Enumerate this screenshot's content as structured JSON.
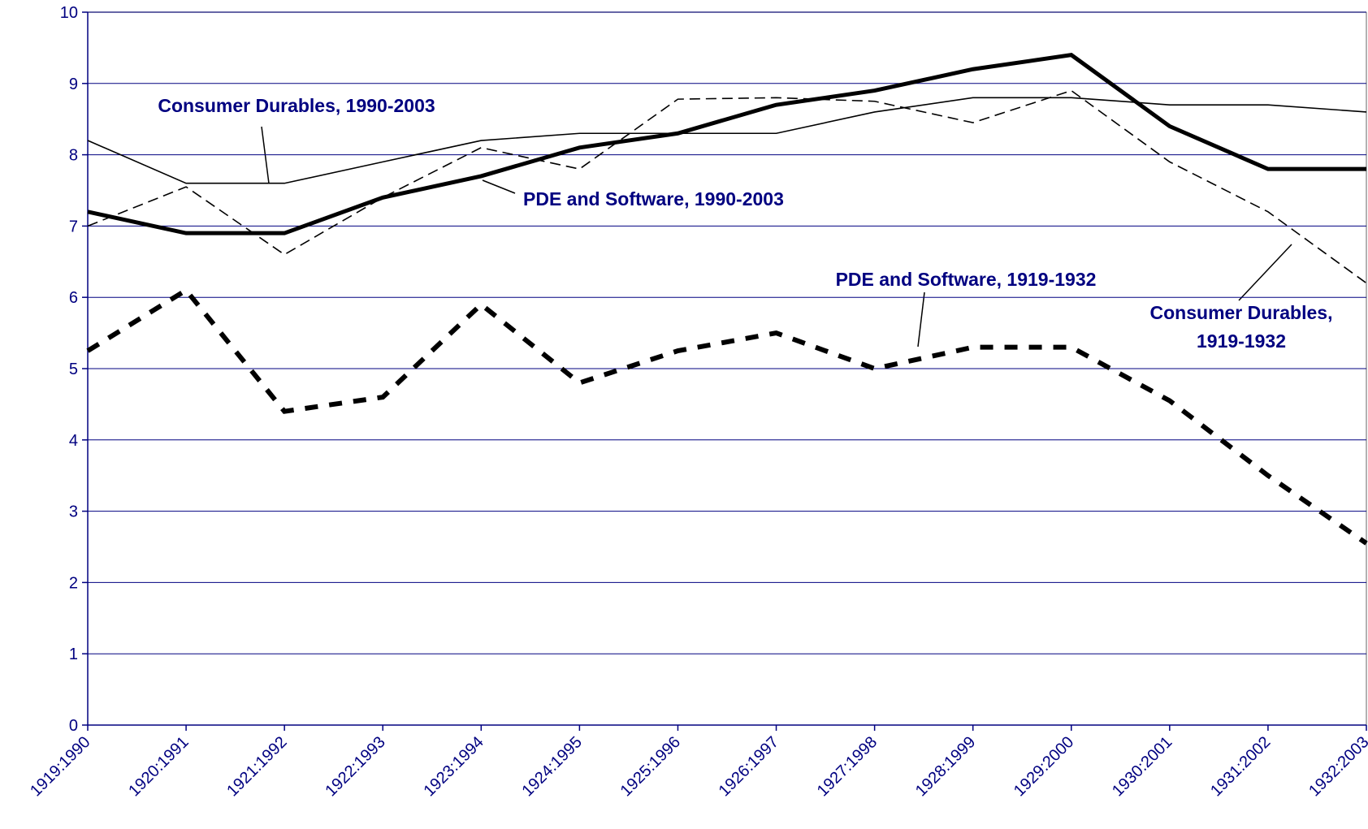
{
  "chart_data": {
    "type": "line",
    "categories": [
      "1919:1990",
      "1920:1991",
      "1921:1992",
      "1922:1993",
      "1923:1994",
      "1924:1995",
      "1925:1996",
      "1926:1997",
      "1927:1998",
      "1928:1999",
      "1929:2000",
      "1930:2001",
      "1931:2002",
      "1932:2003"
    ],
    "series": [
      {
        "name": "Consumer Durables, 1990-2003",
        "color": "#000000",
        "style": "solid",
        "weight": "thin",
        "values": [
          8.2,
          7.6,
          7.6,
          7.9,
          8.2,
          8.3,
          8.3,
          8.3,
          8.6,
          8.8,
          8.8,
          8.7,
          8.7,
          8.6
        ]
      },
      {
        "name": "PDE and Software, 1990-2003",
        "color": "#000000",
        "style": "solid",
        "weight": "bold",
        "values": [
          7.2,
          6.9,
          6.9,
          7.4,
          7.7,
          8.1,
          8.3,
          8.7,
          8.9,
          9.2,
          9.4,
          8.4,
          7.8,
          7.8
        ]
      },
      {
        "name": "PDE and Software, 1919-1932",
        "color": "#000000",
        "style": "dashed",
        "weight": "bold",
        "values": [
          5.25,
          6.1,
          4.4,
          4.6,
          5.9,
          4.8,
          5.25,
          5.5,
          5.0,
          5.3,
          5.3,
          4.55,
          3.5,
          2.55
        ]
      },
      {
        "name": "Consumer Durables, 1919-1932",
        "color": "#000000",
        "style": "dashed",
        "weight": "thin",
        "values": [
          7.0,
          7.55,
          6.6,
          7.4,
          8.1,
          7.8,
          8.78,
          8.8,
          8.75,
          8.45,
          8.9,
          7.9,
          7.2,
          6.2
        ]
      }
    ],
    "ylim": [
      0,
      10
    ],
    "yticks": [
      0,
      1,
      2,
      3,
      4,
      5,
      6,
      7,
      8,
      9,
      10
    ],
    "grid": true
  }
}
